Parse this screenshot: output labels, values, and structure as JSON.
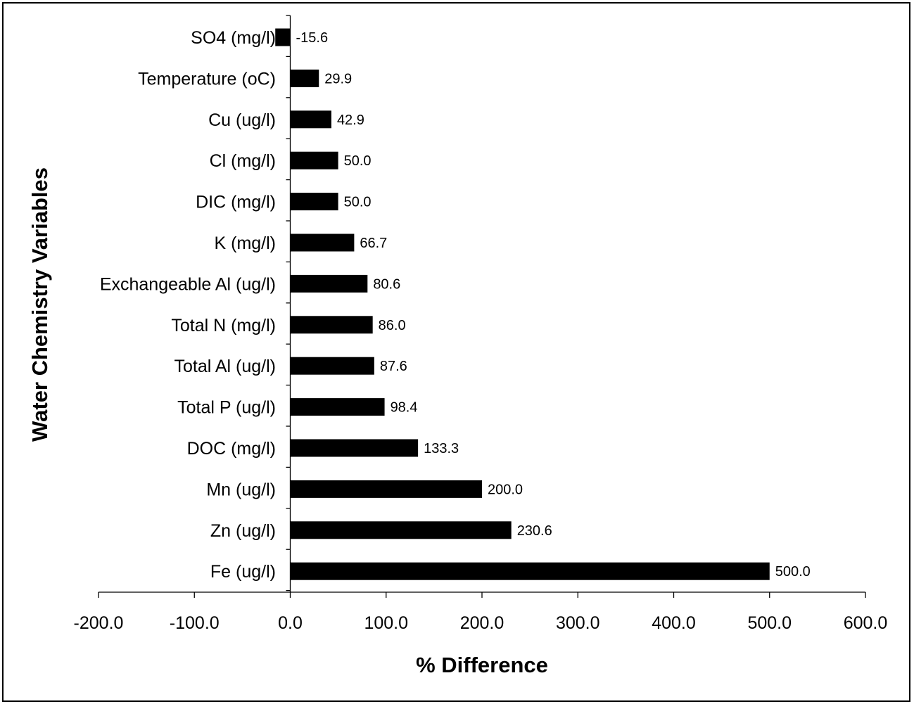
{
  "chart_data": {
    "type": "bar",
    "orientation": "horizontal",
    "title": "",
    "xlabel": "% Difference",
    "ylabel": "Water Chemistry Variables",
    "xlim": [
      -200,
      600
    ],
    "xticks": [
      -200,
      -100,
      0,
      100,
      200,
      300,
      400,
      500,
      600
    ],
    "xtick_labels": [
      "-200.0",
      "-100.0",
      "0.0",
      "100.0",
      "200.0",
      "300.0",
      "400.0",
      "500.0",
      "600.0"
    ],
    "grid": false,
    "legend": "none",
    "bar_color": "#000000",
    "categories": [
      "SO4 (mg/l)",
      "Temperature (oC)",
      "Cu (ug/l)",
      "Cl (mg/l)",
      "DIC (mg/l)",
      "K (mg/l)",
      "Exchangeable Al (ug/l)",
      "Total N (mg/l)",
      "Total Al (ug/l)",
      "Total P (ug/l)",
      "DOC (mg/l)",
      "Mn (ug/l)",
      "Zn (ug/l)",
      "Fe (ug/l)"
    ],
    "values": [
      -15.6,
      29.9,
      42.9,
      50.0,
      50.0,
      66.7,
      80.6,
      86.0,
      87.6,
      98.4,
      133.3,
      200.0,
      230.6,
      500.0
    ],
    "data_labels": [
      "-15.6",
      "29.9",
      "42.9",
      "50.0",
      "50.0",
      "66.7",
      "80.6",
      "86.0",
      "87.6",
      "98.4",
      "133.3",
      "200.0",
      "230.6",
      "500.0"
    ]
  }
}
